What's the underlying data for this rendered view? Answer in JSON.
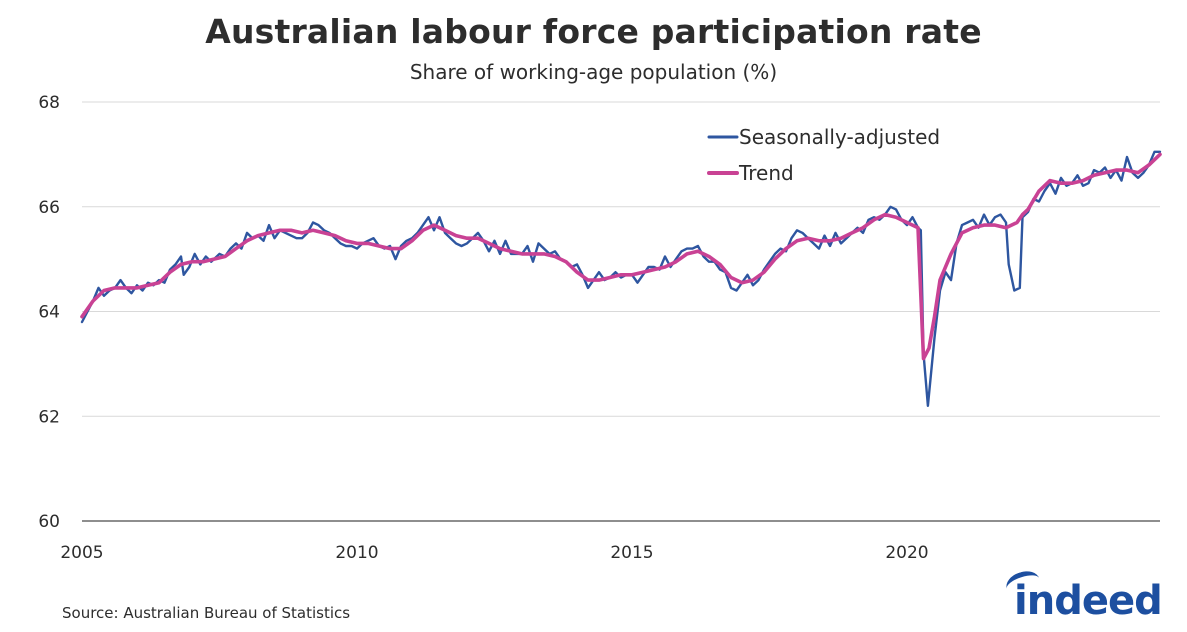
{
  "chart_data": {
    "type": "line",
    "title": "Australian labour force participation rate",
    "subtitle": "Share of working-age population (%)",
    "xlabel": "",
    "ylabel": "",
    "xlim": [
      2005,
      2024.6
    ],
    "ylim": [
      60,
      68
    ],
    "x_ticks": [
      2005,
      2010,
      2015,
      2020
    ],
    "y_ticks": [
      60,
      62,
      64,
      66,
      68
    ],
    "grid": true,
    "legend_position": "top-right",
    "series": [
      {
        "name": "Seasonally-adjusted",
        "color": "#2e56a0",
        "points": [
          [
            2005.0,
            63.8
          ],
          [
            2005.1,
            64.0
          ],
          [
            2005.2,
            64.2
          ],
          [
            2005.3,
            64.45
          ],
          [
            2005.4,
            64.3
          ],
          [
            2005.5,
            64.4
          ],
          [
            2005.6,
            64.45
          ],
          [
            2005.7,
            64.6
          ],
          [
            2005.8,
            64.45
          ],
          [
            2005.9,
            64.35
          ],
          [
            2006.0,
            64.5
          ],
          [
            2006.1,
            64.4
          ],
          [
            2006.2,
            64.55
          ],
          [
            2006.3,
            64.5
          ],
          [
            2006.4,
            64.6
          ],
          [
            2006.5,
            64.55
          ],
          [
            2006.6,
            64.8
          ],
          [
            2006.7,
            64.9
          ],
          [
            2006.8,
            65.05
          ],
          [
            2006.85,
            64.7
          ],
          [
            2006.95,
            64.85
          ],
          [
            2007.05,
            65.1
          ],
          [
            2007.15,
            64.9
          ],
          [
            2007.25,
            65.05
          ],
          [
            2007.35,
            64.95
          ],
          [
            2007.5,
            65.1
          ],
          [
            2007.6,
            65.05
          ],
          [
            2007.7,
            65.2
          ],
          [
            2007.8,
            65.3
          ],
          [
            2007.9,
            65.2
          ],
          [
            2008.0,
            65.5
          ],
          [
            2008.1,
            65.4
          ],
          [
            2008.2,
            65.45
          ],
          [
            2008.3,
            65.35
          ],
          [
            2008.4,
            65.65
          ],
          [
            2008.5,
            65.4
          ],
          [
            2008.6,
            65.55
          ],
          [
            2008.7,
            65.5
          ],
          [
            2008.8,
            65.45
          ],
          [
            2008.9,
            65.4
          ],
          [
            2009.0,
            65.4
          ],
          [
            2009.1,
            65.5
          ],
          [
            2009.2,
            65.7
          ],
          [
            2009.3,
            65.65
          ],
          [
            2009.4,
            65.55
          ],
          [
            2009.5,
            65.5
          ],
          [
            2009.6,
            65.4
          ],
          [
            2009.7,
            65.3
          ],
          [
            2009.8,
            65.25
          ],
          [
            2009.9,
            65.25
          ],
          [
            2010.0,
            65.2
          ],
          [
            2010.1,
            65.3
          ],
          [
            2010.2,
            65.35
          ],
          [
            2010.3,
            65.4
          ],
          [
            2010.4,
            65.25
          ],
          [
            2010.5,
            65.2
          ],
          [
            2010.6,
            65.25
          ],
          [
            2010.7,
            65.0
          ],
          [
            2010.8,
            65.25
          ],
          [
            2010.9,
            65.35
          ],
          [
            2011.0,
            65.4
          ],
          [
            2011.1,
            65.5
          ],
          [
            2011.2,
            65.65
          ],
          [
            2011.3,
            65.8
          ],
          [
            2011.4,
            65.55
          ],
          [
            2011.5,
            65.8
          ],
          [
            2011.6,
            65.5
          ],
          [
            2011.7,
            65.4
          ],
          [
            2011.8,
            65.3
          ],
          [
            2011.9,
            65.25
          ],
          [
            2012.0,
            65.3
          ],
          [
            2012.1,
            65.4
          ],
          [
            2012.2,
            65.5
          ],
          [
            2012.3,
            65.35
          ],
          [
            2012.4,
            65.15
          ],
          [
            2012.5,
            65.35
          ],
          [
            2012.6,
            65.1
          ],
          [
            2012.7,
            65.35
          ],
          [
            2012.8,
            65.1
          ],
          [
            2012.9,
            65.1
          ],
          [
            2013.0,
            65.1
          ],
          [
            2013.1,
            65.25
          ],
          [
            2013.2,
            64.95
          ],
          [
            2013.3,
            65.3
          ],
          [
            2013.4,
            65.2
          ],
          [
            2013.5,
            65.1
          ],
          [
            2013.6,
            65.15
          ],
          [
            2013.7,
            65.0
          ],
          [
            2013.8,
            64.95
          ],
          [
            2013.9,
            64.85
          ],
          [
            2014.0,
            64.9
          ],
          [
            2014.1,
            64.7
          ],
          [
            2014.2,
            64.45
          ],
          [
            2014.3,
            64.6
          ],
          [
            2014.4,
            64.75
          ],
          [
            2014.5,
            64.6
          ],
          [
            2014.6,
            64.65
          ],
          [
            2014.7,
            64.75
          ],
          [
            2014.8,
            64.65
          ],
          [
            2014.9,
            64.7
          ],
          [
            2015.0,
            64.7
          ],
          [
            2015.1,
            64.55
          ],
          [
            2015.2,
            64.7
          ],
          [
            2015.3,
            64.85
          ],
          [
            2015.4,
            64.85
          ],
          [
            2015.5,
            64.8
          ],
          [
            2015.6,
            65.05
          ],
          [
            2015.7,
            64.85
          ],
          [
            2015.8,
            65.0
          ],
          [
            2015.9,
            65.15
          ],
          [
            2016.0,
            65.2
          ],
          [
            2016.1,
            65.2
          ],
          [
            2016.2,
            65.25
          ],
          [
            2016.3,
            65.05
          ],
          [
            2016.4,
            64.95
          ],
          [
            2016.5,
            64.95
          ],
          [
            2016.6,
            64.8
          ],
          [
            2016.7,
            64.75
          ],
          [
            2016.8,
            64.45
          ],
          [
            2016.9,
            64.4
          ],
          [
            2017.0,
            64.55
          ],
          [
            2017.1,
            64.7
          ],
          [
            2017.2,
            64.5
          ],
          [
            2017.3,
            64.6
          ],
          [
            2017.4,
            64.8
          ],
          [
            2017.5,
            64.95
          ],
          [
            2017.6,
            65.1
          ],
          [
            2017.7,
            65.2
          ],
          [
            2017.8,
            65.15
          ],
          [
            2017.9,
            65.4
          ],
          [
            2018.0,
            65.55
          ],
          [
            2018.1,
            65.5
          ],
          [
            2018.2,
            65.4
          ],
          [
            2018.3,
            65.3
          ],
          [
            2018.4,
            65.2
          ],
          [
            2018.5,
            65.45
          ],
          [
            2018.6,
            65.25
          ],
          [
            2018.7,
            65.5
          ],
          [
            2018.8,
            65.3
          ],
          [
            2018.9,
            65.4
          ],
          [
            2019.0,
            65.5
          ],
          [
            2019.1,
            65.6
          ],
          [
            2019.2,
            65.5
          ],
          [
            2019.3,
            65.75
          ],
          [
            2019.4,
            65.8
          ],
          [
            2019.5,
            65.75
          ],
          [
            2019.6,
            65.85
          ],
          [
            2019.7,
            66.0
          ],
          [
            2019.8,
            65.95
          ],
          [
            2019.9,
            65.75
          ],
          [
            2020.0,
            65.65
          ],
          [
            2020.1,
            65.8
          ],
          [
            2020.2,
            65.6
          ],
          [
            2020.25,
            65.55
          ],
          [
            2020.3,
            63.2
          ],
          [
            2020.38,
            62.2
          ],
          [
            2020.5,
            63.5
          ],
          [
            2020.6,
            64.4
          ],
          [
            2020.7,
            64.75
          ],
          [
            2020.8,
            64.6
          ],
          [
            2020.9,
            65.3
          ],
          [
            2021.0,
            65.65
          ],
          [
            2021.1,
            65.7
          ],
          [
            2021.2,
            65.75
          ],
          [
            2021.3,
            65.6
          ],
          [
            2021.4,
            65.85
          ],
          [
            2021.5,
            65.65
          ],
          [
            2021.6,
            65.8
          ],
          [
            2021.7,
            65.85
          ],
          [
            2021.8,
            65.7
          ],
          [
            2021.85,
            64.9
          ],
          [
            2021.95,
            64.4
          ],
          [
            2022.05,
            64.45
          ],
          [
            2022.1,
            65.8
          ],
          [
            2022.2,
            65.9
          ],
          [
            2022.3,
            66.15
          ],
          [
            2022.4,
            66.1
          ],
          [
            2022.5,
            66.3
          ],
          [
            2022.6,
            66.45
          ],
          [
            2022.7,
            66.25
          ],
          [
            2022.8,
            66.55
          ],
          [
            2022.9,
            66.4
          ],
          [
            2023.0,
            66.45
          ],
          [
            2023.1,
            66.6
          ],
          [
            2023.2,
            66.4
          ],
          [
            2023.3,
            66.45
          ],
          [
            2023.4,
            66.7
          ],
          [
            2023.5,
            66.65
          ],
          [
            2023.6,
            66.75
          ],
          [
            2023.7,
            66.55
          ],
          [
            2023.8,
            66.7
          ],
          [
            2023.9,
            66.5
          ],
          [
            2024.0,
            66.95
          ],
          [
            2024.1,
            66.65
          ],
          [
            2024.2,
            66.55
          ],
          [
            2024.3,
            66.65
          ],
          [
            2024.4,
            66.8
          ],
          [
            2024.5,
            67.05
          ],
          [
            2024.6,
            67.05
          ]
        ]
      },
      {
        "name": "Trend",
        "color": "#c94294",
        "points": [
          [
            2005.0,
            63.9
          ],
          [
            2005.2,
            64.2
          ],
          [
            2005.4,
            64.4
          ],
          [
            2005.6,
            64.45
          ],
          [
            2005.8,
            64.45
          ],
          [
            2006.0,
            64.45
          ],
          [
            2006.2,
            64.5
          ],
          [
            2006.4,
            64.55
          ],
          [
            2006.6,
            64.75
          ],
          [
            2006.8,
            64.9
          ],
          [
            2007.0,
            64.95
          ],
          [
            2007.2,
            64.95
          ],
          [
            2007.4,
            65.0
          ],
          [
            2007.6,
            65.05
          ],
          [
            2007.8,
            65.2
          ],
          [
            2008.0,
            65.35
          ],
          [
            2008.2,
            65.45
          ],
          [
            2008.4,
            65.5
          ],
          [
            2008.6,
            65.55
          ],
          [
            2008.8,
            65.55
          ],
          [
            2009.0,
            65.5
          ],
          [
            2009.2,
            65.55
          ],
          [
            2009.4,
            65.5
          ],
          [
            2009.6,
            65.45
          ],
          [
            2009.8,
            65.35
          ],
          [
            2010.0,
            65.3
          ],
          [
            2010.2,
            65.3
          ],
          [
            2010.4,
            65.25
          ],
          [
            2010.6,
            65.2
          ],
          [
            2010.8,
            65.2
          ],
          [
            2011.0,
            65.35
          ],
          [
            2011.2,
            65.55
          ],
          [
            2011.4,
            65.65
          ],
          [
            2011.6,
            65.55
          ],
          [
            2011.8,
            65.45
          ],
          [
            2012.0,
            65.4
          ],
          [
            2012.2,
            65.4
          ],
          [
            2012.4,
            65.3
          ],
          [
            2012.6,
            65.2
          ],
          [
            2012.8,
            65.15
          ],
          [
            2013.0,
            65.1
          ],
          [
            2013.2,
            65.1
          ],
          [
            2013.4,
            65.1
          ],
          [
            2013.6,
            65.05
          ],
          [
            2013.8,
            64.95
          ],
          [
            2014.0,
            64.75
          ],
          [
            2014.2,
            64.6
          ],
          [
            2014.4,
            64.6
          ],
          [
            2014.6,
            64.65
          ],
          [
            2014.8,
            64.7
          ],
          [
            2015.0,
            64.7
          ],
          [
            2015.2,
            64.75
          ],
          [
            2015.4,
            64.8
          ],
          [
            2015.6,
            64.85
          ],
          [
            2015.8,
            64.95
          ],
          [
            2016.0,
            65.1
          ],
          [
            2016.2,
            65.15
          ],
          [
            2016.4,
            65.05
          ],
          [
            2016.6,
            64.9
          ],
          [
            2016.8,
            64.65
          ],
          [
            2017.0,
            64.55
          ],
          [
            2017.2,
            64.6
          ],
          [
            2017.4,
            64.75
          ],
          [
            2017.6,
            65.0
          ],
          [
            2017.8,
            65.2
          ],
          [
            2018.0,
            65.35
          ],
          [
            2018.2,
            65.4
          ],
          [
            2018.4,
            65.35
          ],
          [
            2018.6,
            65.35
          ],
          [
            2018.8,
            65.4
          ],
          [
            2019.0,
            65.5
          ],
          [
            2019.2,
            65.6
          ],
          [
            2019.4,
            65.75
          ],
          [
            2019.6,
            65.85
          ],
          [
            2019.8,
            65.8
          ],
          [
            2020.0,
            65.7
          ],
          [
            2020.1,
            65.65
          ],
          [
            2020.2,
            65.6
          ],
          [
            2020.3,
            63.1
          ],
          [
            2020.4,
            63.3
          ],
          [
            2020.5,
            63.9
          ],
          [
            2020.6,
            64.6
          ],
          [
            2020.8,
            65.1
          ],
          [
            2021.0,
            65.5
          ],
          [
            2021.2,
            65.6
          ],
          [
            2021.4,
            65.65
          ],
          [
            2021.6,
            65.65
          ],
          [
            2021.8,
            65.6
          ],
          [
            2022.0,
            65.7
          ],
          [
            2022.1,
            65.85
          ],
          [
            2022.2,
            65.95
          ],
          [
            2022.4,
            66.3
          ],
          [
            2022.6,
            66.5
          ],
          [
            2022.8,
            66.45
          ],
          [
            2023.0,
            66.45
          ],
          [
            2023.2,
            66.5
          ],
          [
            2023.4,
            66.6
          ],
          [
            2023.6,
            66.65
          ],
          [
            2023.8,
            66.7
          ],
          [
            2024.0,
            66.7
          ],
          [
            2024.2,
            66.65
          ],
          [
            2024.4,
            66.8
          ],
          [
            2024.6,
            67.0
          ]
        ]
      }
    ]
  },
  "source_text": "Source: Australian Bureau of Statistics",
  "logo_text": "indeed"
}
